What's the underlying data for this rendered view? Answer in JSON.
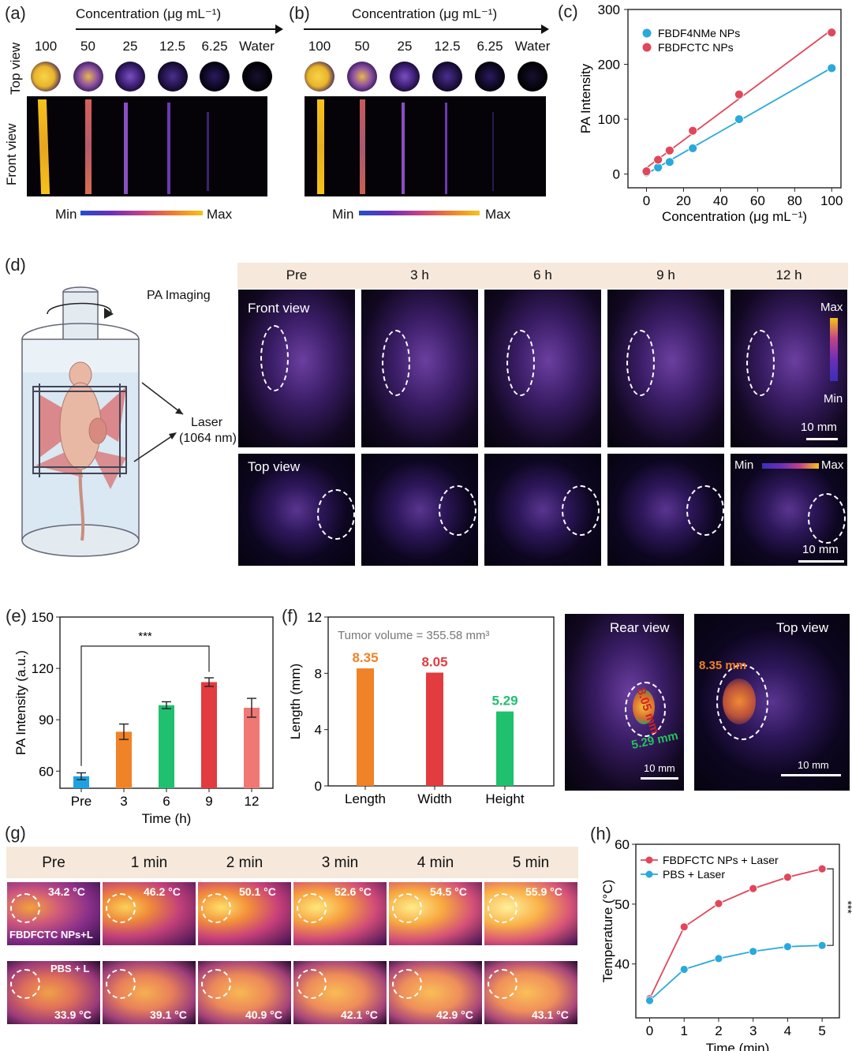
{
  "panel_a": {
    "label": "(a)",
    "axis_title": "Concentration (μg mL⁻¹)",
    "concentrations": [
      "100",
      "50",
      "25",
      "12.5",
      "6.25",
      "Water"
    ],
    "row_top": "Top view",
    "row_front": "Front view",
    "min": "Min",
    "max": "Max"
  },
  "panel_b": {
    "label": "(b)",
    "axis_title": "Concentration (μg mL⁻¹)",
    "concentrations": [
      "100",
      "50",
      "25",
      "12.5",
      "6.25",
      "Water"
    ],
    "min": "Min",
    "max": "Max"
  },
  "panel_d": {
    "label": "(d)",
    "pa_imaging": "PA Imaging",
    "laser": "Laser",
    "laser_wl": "(1064 nm)",
    "timepoints": [
      "Pre",
      "3 h",
      "6 h",
      "9 h",
      "12 h"
    ],
    "front_view": "Front view",
    "top_view": "Top view",
    "max": "Max",
    "min": "Min",
    "scale": "10 mm"
  },
  "panel_f_images": {
    "rear_view": "Rear view",
    "top_view": "Top view",
    "width_label": "8.05 mm",
    "height_label": "5.29 mm",
    "length_label": "8.35 mm",
    "scale": "10 mm"
  },
  "panel_g": {
    "label": "(g)",
    "timepoints": [
      "Pre",
      "1 min",
      "2 min",
      "3 min",
      "4 min",
      "5 min"
    ],
    "temps_top": [
      "34.2 °C",
      "46.2 °C",
      "50.1 °C",
      "52.6 °C",
      "54.5 °C",
      "55.9 °C"
    ],
    "temps_bottom": [
      "33.9 °C",
      "39.1 °C",
      "40.9 °C",
      "42.1 °C",
      "42.9 °C",
      "43.1 °C"
    ],
    "group_top": "FBDFCTC NPs+L",
    "group_bottom": "PBS + L"
  },
  "chart_data": [
    {
      "id": "c",
      "panel_label": "(c)",
      "type": "scatter",
      "xlabel": "Concentration (μg mL⁻¹)",
      "ylabel": "PA Intensity",
      "xlim": [
        -10,
        105
      ],
      "ylim": [
        -25,
        300
      ],
      "xticks": [
        0,
        20,
        40,
        60,
        80,
        100
      ],
      "yticks": [
        0,
        100,
        200,
        300
      ],
      "x": [
        0,
        6.25,
        12.5,
        25,
        50,
        100
      ],
      "series": [
        {
          "name": "FBDF4NMe NPs",
          "color": "#29a9dc",
          "values": [
            3,
            12,
            22,
            47,
            100,
            193
          ]
        },
        {
          "name": "FBDFCTC NPs",
          "color": "#e0475a",
          "values": [
            5,
            26,
            43,
            79,
            145,
            258
          ]
        }
      ]
    },
    {
      "id": "e",
      "panel_label": "(e)",
      "type": "bar",
      "xlabel": "Time (h)",
      "ylabel": "PA Intensity (a.u.)",
      "ylim": [
        50,
        150
      ],
      "yticks": [
        60,
        90,
        120,
        150
      ],
      "categories": [
        "Pre",
        "3",
        "6",
        "9",
        "12"
      ],
      "values": [
        57,
        83,
        98.5,
        112,
        97
      ],
      "errors": [
        2,
        4.5,
        2,
        2.5,
        5.5
      ],
      "colors": [
        "#1ea1e0",
        "#f08227",
        "#1fc06e",
        "#e23c40",
        "#f17774"
      ],
      "significance": "***"
    },
    {
      "id": "f",
      "panel_label": "(f)",
      "type": "bar",
      "ylabel": "Length (mm)",
      "ylim": [
        0,
        12
      ],
      "yticks": [
        0,
        4,
        8,
        12
      ],
      "categories": [
        "Length",
        "Width",
        "Height"
      ],
      "values": [
        8.35,
        8.05,
        5.29
      ],
      "value_labels": [
        "8.35",
        "8.05",
        "5.29"
      ],
      "colors": [
        "#f08227",
        "#e23c40",
        "#1fc06e"
      ],
      "annotation": "Tumor volume = 355.58 mm³"
    },
    {
      "id": "h",
      "panel_label": "(h)",
      "type": "line",
      "xlabel": "Time (min)",
      "ylabel": "Temperature (°C)",
      "xlim": [
        -0.4,
        5.5
      ],
      "ylim": [
        31,
        60
      ],
      "xticks": [
        0,
        1,
        2,
        3,
        4,
        5
      ],
      "yticks": [
        40,
        50,
        60
      ],
      "x": [
        0,
        1,
        2,
        3,
        4,
        5
      ],
      "series": [
        {
          "name": "FBDFCTC NPs + Laser",
          "color": "#e0475a",
          "values": [
            34.2,
            46.2,
            50.1,
            52.6,
            54.5,
            55.9
          ]
        },
        {
          "name": "PBS + Laser",
          "color": "#29a9dc",
          "values": [
            33.9,
            39.1,
            40.9,
            42.1,
            42.9,
            43.1
          ]
        }
      ],
      "significance": "***"
    }
  ]
}
